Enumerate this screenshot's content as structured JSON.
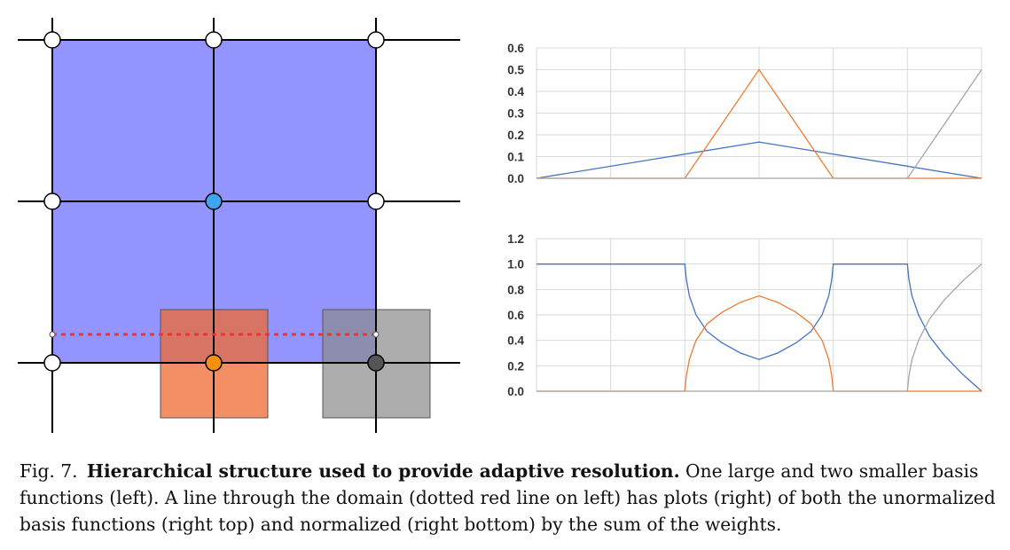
{
  "caption": {
    "label": "Fig. 7.",
    "title": "Hierarchical structure used to provide adaptive resolution.",
    "body": "One large and two smaller basis functions (left). A line through the domain (dotted red line on left) has plots (right) of both the unormalized basis functions (right top) and normalized (right bottom) by the sum of the weights."
  },
  "colors": {
    "large_basis": "#9494ff",
    "small_basis_orange": "#f08050",
    "small_basis_gray": "#999999",
    "blue_node": "#3ea6f0",
    "orange_node": "#f5900f",
    "gray_node": "#555555",
    "dotted_line": "#ee3333",
    "series_blue": "#4472c4",
    "series_orange": "#ed7d31",
    "series_gray": "#a5a5a5"
  },
  "chart_data": [
    {
      "type": "line",
      "title": "",
      "xlabel": "",
      "ylabel": "",
      "ylim": [
        0,
        0.6
      ],
      "yticks": [
        "0.6",
        "0.5",
        "0.4",
        "0.3",
        "0.2",
        "0.1",
        "0.0"
      ],
      "x_gridlines": 6,
      "grid": true,
      "legend": "none",
      "series": [
        {
          "color": "#4472c4",
          "points": [
            [
              0,
              0
            ],
            [
              3,
              0.167
            ],
            [
              6,
              0
            ]
          ]
        },
        {
          "color": "#ed7d31",
          "points": [
            [
              0,
              0
            ],
            [
              2,
              0
            ],
            [
              3,
              0.5
            ],
            [
              4,
              0
            ],
            [
              6,
              0
            ]
          ]
        },
        {
          "color": "#a5a5a5",
          "points": [
            [
              0,
              0
            ],
            [
              5,
              0
            ],
            [
              6,
              0.5
            ]
          ]
        }
      ]
    },
    {
      "type": "line",
      "title": "",
      "xlabel": "",
      "ylabel": "",
      "ylim": [
        0,
        1.2
      ],
      "yticks": [
        "1.2",
        "1.0",
        "0.8",
        "0.6",
        "0.4",
        "0.2",
        "0.0"
      ],
      "x_gridlines": 6,
      "grid": true,
      "legend": "none",
      "series": [
        {
          "color": "#4472c4",
          "points": [
            [
              0,
              1
            ],
            [
              2,
              1
            ],
            [
              2.02,
              0.88
            ],
            [
              2.06,
              0.75
            ],
            [
              2.15,
              0.6
            ],
            [
              2.3,
              0.47
            ],
            [
              2.5,
              0.38
            ],
            [
              2.75,
              0.3
            ],
            [
              3,
              0.25
            ],
            [
              3.25,
              0.3
            ],
            [
              3.5,
              0.38
            ],
            [
              3.7,
              0.47
            ],
            [
              3.85,
              0.6
            ],
            [
              3.94,
              0.75
            ],
            [
              3.98,
              0.88
            ],
            [
              4,
              1
            ],
            [
              5,
              1
            ],
            [
              5.02,
              0.88
            ],
            [
              5.06,
              0.75
            ],
            [
              5.15,
              0.6
            ],
            [
              5.3,
              0.43
            ],
            [
              5.5,
              0.28
            ],
            [
              5.75,
              0.13
            ],
            [
              6,
              0
            ]
          ]
        },
        {
          "color": "#ed7d31",
          "points": [
            [
              0,
              0
            ],
            [
              2,
              0
            ],
            [
              2.02,
              0.12
            ],
            [
              2.06,
              0.25
            ],
            [
              2.15,
              0.4
            ],
            [
              2.3,
              0.53
            ],
            [
              2.5,
              0.62
            ],
            [
              2.75,
              0.7
            ],
            [
              3,
              0.75
            ],
            [
              3.25,
              0.7
            ],
            [
              3.5,
              0.62
            ],
            [
              3.7,
              0.53
            ],
            [
              3.85,
              0.4
            ],
            [
              3.94,
              0.25
            ],
            [
              3.98,
              0.12
            ],
            [
              4,
              0
            ],
            [
              6,
              0
            ]
          ]
        },
        {
          "color": "#a5a5a5",
          "points": [
            [
              0,
              0
            ],
            [
              5,
              0
            ],
            [
              5.02,
              0.12
            ],
            [
              5.06,
              0.25
            ],
            [
              5.15,
              0.4
            ],
            [
              5.3,
              0.57
            ],
            [
              5.5,
              0.72
            ],
            [
              5.75,
              0.87
            ],
            [
              6,
              1
            ]
          ]
        }
      ]
    }
  ]
}
